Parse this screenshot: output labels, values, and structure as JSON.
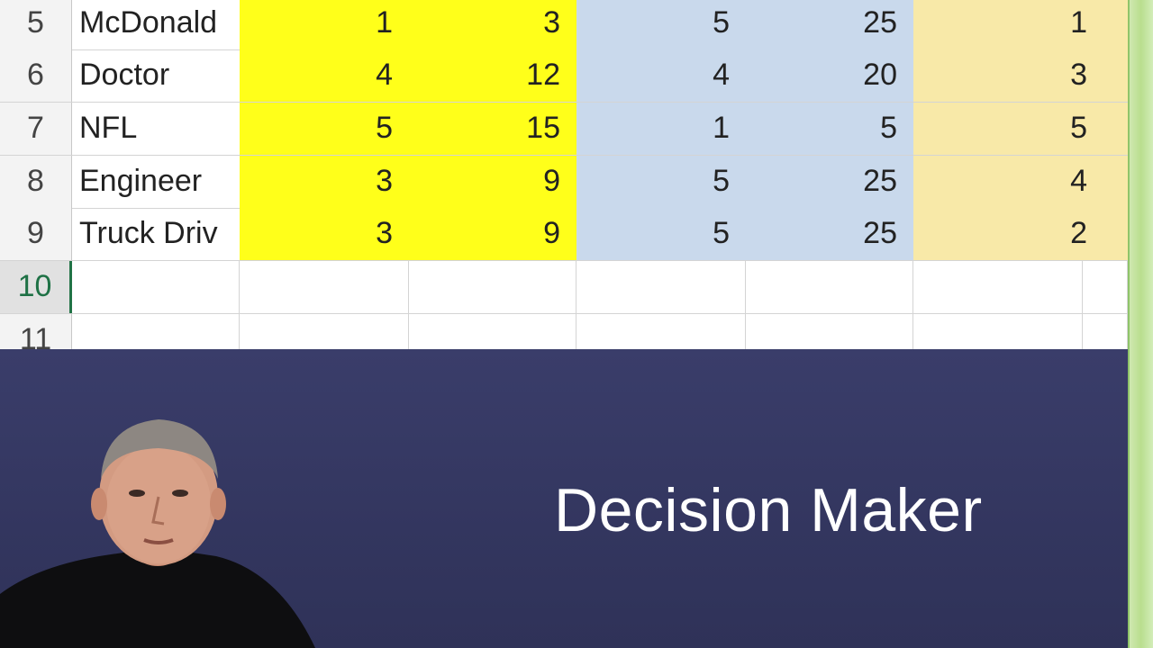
{
  "spreadsheet": {
    "rows": [
      {
        "header": "5",
        "name": "McDonald",
        "c1": "1",
        "c2": "3",
        "c3": "5",
        "c4": "25",
        "c5": "1"
      },
      {
        "header": "6",
        "name": "Doctor",
        "c1": "4",
        "c2": "12",
        "c3": "4",
        "c4": "20",
        "c5": "3"
      },
      {
        "header": "7",
        "name": "NFL",
        "c1": "5",
        "c2": "15",
        "c3": "1",
        "c4": "5",
        "c5": "5"
      },
      {
        "header": "8",
        "name": "Engineer",
        "c1": "3",
        "c2": "9",
        "c3": "5",
        "c4": "25",
        "c5": "4"
      },
      {
        "header": "9",
        "name": "Truck Driv",
        "c1": "3",
        "c2": "9",
        "c3": "5",
        "c4": "25",
        "c5": "2"
      }
    ],
    "empty_rows": [
      "10",
      "11"
    ],
    "colors": {
      "yellow": "#ffff1a",
      "blue": "#c9d9ec",
      "tan": "#f8e9a8",
      "active_row": "#217346"
    }
  },
  "slide": {
    "title": "Decision Maker",
    "background": "#35385f"
  },
  "presenter": {
    "icon": "presenter-webcam-video"
  }
}
